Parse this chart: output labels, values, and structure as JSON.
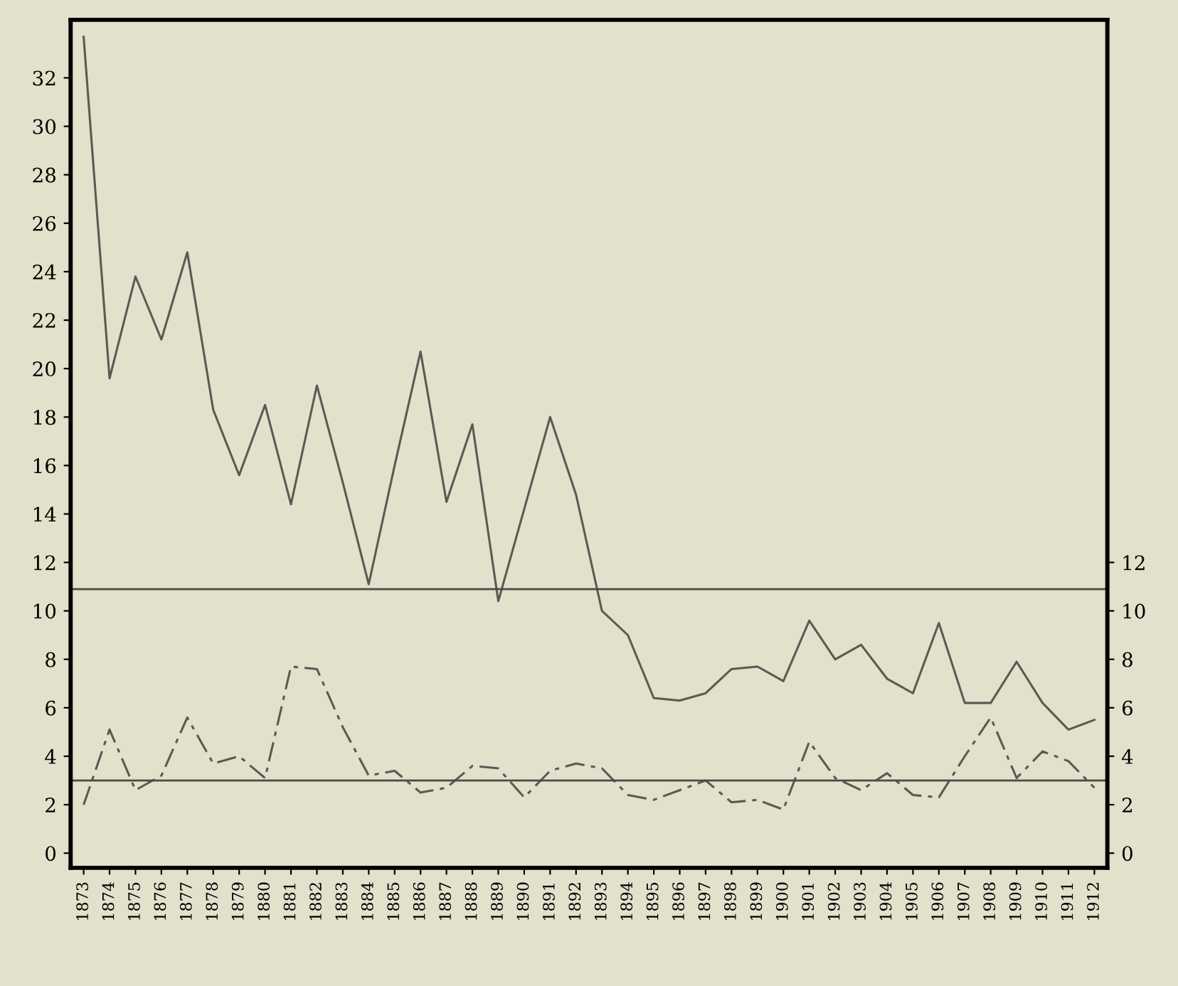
{
  "chart_data": {
    "type": "line",
    "categories": [
      "1873",
      "1874",
      "1875",
      "1876",
      "1877",
      "1878",
      "1879",
      "1880",
      "1881",
      "1882",
      "1883",
      "1884",
      "1885",
      "1886",
      "1887",
      "1888",
      "1889",
      "1890",
      "1891",
      "1892",
      "1893",
      "1894",
      "1895",
      "1896",
      "1897",
      "1898",
      "1899",
      "1900",
      "1901",
      "1902",
      "1903",
      "1904",
      "1905",
      "1906",
      "1907",
      "1908",
      "1909",
      "1910",
      "1911",
      "1912"
    ],
    "series": [
      {
        "color": "#5a5a55",
        "line_style": "solid",
        "values": [
          33.7,
          19.6,
          23.8,
          21.2,
          24.8,
          18.3,
          15.6,
          18.5,
          14.4,
          19.3,
          15.3,
          11.1,
          16.0,
          20.7,
          14.5,
          17.7,
          10.4,
          14.2,
          18.0,
          14.8,
          10.0,
          9.0,
          6.4,
          6.3,
          6.6,
          7.6,
          7.7,
          7.1,
          9.6,
          8.0,
          8.6,
          7.2,
          6.6,
          9.5,
          6.2,
          6.2,
          7.9,
          6.2,
          5.1,
          5.5
        ]
      },
      {
        "color": "#5a5a55",
        "line_style": "dashed",
        "values": [
          2.0,
          5.1,
          2.6,
          3.2,
          5.6,
          3.7,
          4.0,
          3.1,
          7.7,
          7.6,
          5.2,
          3.2,
          3.4,
          2.5,
          2.7,
          3.6,
          3.5,
          2.3,
          3.4,
          3.7,
          3.5,
          2.4,
          2.2,
          2.6,
          3.0,
          2.1,
          2.2,
          1.8,
          4.6,
          3.1,
          2.6,
          3.3,
          2.4,
          2.3,
          4.0,
          5.6,
          3.1,
          4.2,
          3.8,
          2.7
        ]
      }
    ],
    "ylim": [
      -0.6,
      34.4
    ],
    "yticks": [
      0,
      2,
      4,
      6,
      8,
      10,
      12,
      14,
      16,
      18,
      20,
      22,
      24,
      26,
      28,
      30,
      32
    ],
    "y2lim": [
      -0.6,
      34.4
    ],
    "y2ticks": [
      0,
      2,
      4,
      6,
      8,
      10,
      12
    ],
    "ref_lines": [
      {
        "axis": "y",
        "value": 10.9,
        "color": "#4a4a45"
      },
      {
        "axis": "y",
        "value": 3.0,
        "color": "#4a4a45"
      }
    ],
    "grid": false,
    "marker": "none"
  }
}
